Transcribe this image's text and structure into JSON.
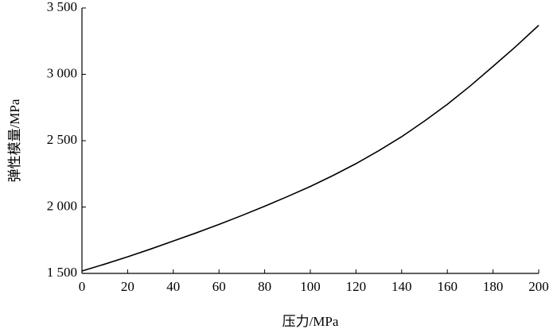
{
  "chart_data": {
    "type": "line",
    "x_label": "压力/MPa",
    "y_label": "弹性模量/MPa",
    "x": [
      0,
      10,
      20,
      30,
      40,
      50,
      60,
      70,
      80,
      90,
      100,
      110,
      120,
      130,
      140,
      150,
      160,
      170,
      180,
      190,
      200
    ],
    "series": [
      {
        "name": "弹性模量",
        "color": "#000000",
        "values": [
          1518,
          1570,
          1625,
          1683,
          1744,
          1805,
          1869,
          1936,
          2006,
          2079,
          2155,
          2238,
          2327,
          2425,
          2530,
          2648,
          2774,
          2912,
          3060,
          3210,
          3369
        ]
      }
    ],
    "xlim": [
      0,
      200
    ],
    "xticks": [
      0,
      20,
      40,
      60,
      80,
      100,
      120,
      140,
      160,
      180,
      200
    ],
    "ylim": [
      1500,
      3500
    ],
    "yticks": [
      {
        "value": 1500,
        "label": "1 500"
      },
      {
        "value": 2000,
        "label": "2 000"
      },
      {
        "value": 2500,
        "label": "2 500"
      },
      {
        "value": 3000,
        "label": "3 000"
      },
      {
        "value": 3500,
        "label": "3 500"
      }
    ],
    "grid": false
  }
}
